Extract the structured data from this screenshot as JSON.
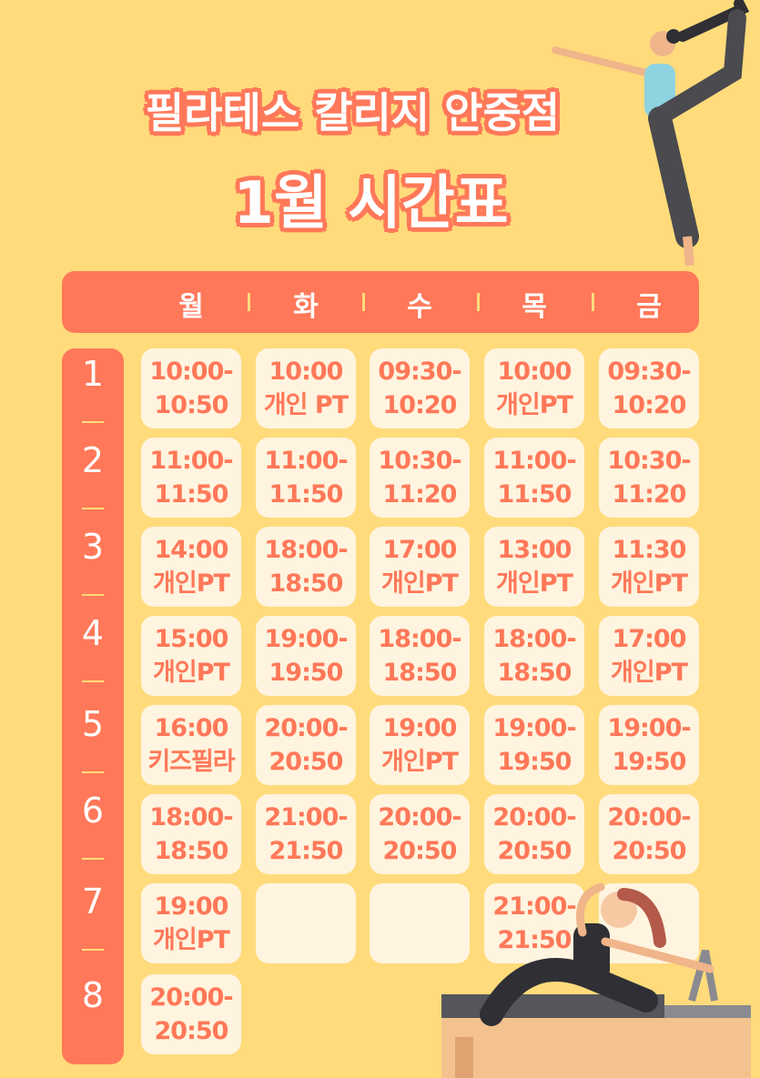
{
  "title": {
    "line1": "필라테스 칼리지 안중점",
    "line2": "1월 시간표"
  },
  "days": [
    "월",
    "화",
    "수",
    "목",
    "금"
  ],
  "periods": [
    "1",
    "2",
    "3",
    "4",
    "5",
    "6",
    "7",
    "8"
  ],
  "rows": [
    [
      [
        "10:00-",
        "10:50"
      ],
      [
        "10:00",
        "개인 PT"
      ],
      [
        "09:30-",
        "10:20"
      ],
      [
        "10:00",
        "개인PT"
      ],
      [
        "09:30-",
        "10:20"
      ]
    ],
    [
      [
        "11:00-",
        "11:50"
      ],
      [
        "11:00-",
        "11:50"
      ],
      [
        "10:30-",
        "11:20"
      ],
      [
        "11:00-",
        "11:50"
      ],
      [
        "10:30-",
        "11:20"
      ]
    ],
    [
      [
        "14:00",
        "개인PT"
      ],
      [
        "18:00-",
        "18:50"
      ],
      [
        "17:00",
        "개인PT"
      ],
      [
        "13:00",
        "개인PT"
      ],
      [
        "11:30",
        "개인PT"
      ]
    ],
    [
      [
        "15:00",
        "개인PT"
      ],
      [
        "19:00-",
        "19:50"
      ],
      [
        "18:00-",
        "18:50"
      ],
      [
        "18:00-",
        "18:50"
      ],
      [
        "17:00",
        "개인PT"
      ]
    ],
    [
      [
        "16:00",
        "키즈필라"
      ],
      [
        "20:00-",
        "20:50"
      ],
      [
        "19:00",
        "개인PT"
      ],
      [
        "19:00-",
        "19:50"
      ],
      [
        "19:00-",
        "19:50"
      ]
    ],
    [
      [
        "18:00-",
        "18:50"
      ],
      [
        "21:00-",
        "21:50"
      ],
      [
        "20:00-",
        "20:50"
      ],
      [
        "20:00-",
        "20:50"
      ],
      [
        "20:00-",
        "20:50"
      ]
    ],
    [
      [
        "19:00",
        "개인PT"
      ],
      [
        "",
        ""
      ],
      [
        "",
        ""
      ],
      [
        "21:00-",
        "21:50"
      ],
      [
        "",
        ""
      ]
    ],
    [
      [
        "20:00-",
        "20:50"
      ],
      null,
      null,
      null,
      null
    ]
  ],
  "colors": {
    "background": "#FFDB7B",
    "accent": "#FF7859",
    "cell": "#FFF4DF"
  }
}
